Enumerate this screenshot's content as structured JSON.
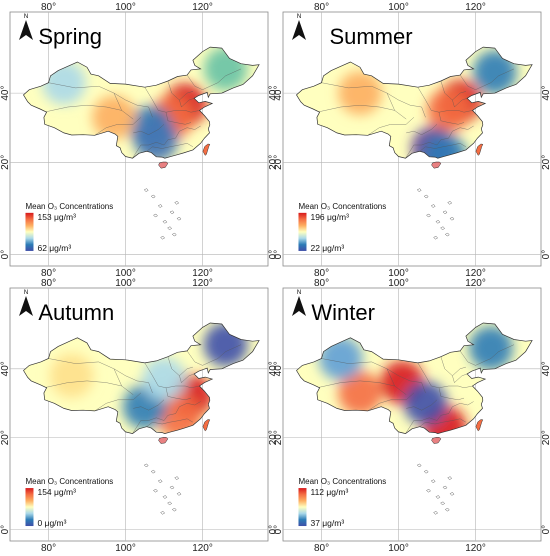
{
  "panels": [
    {
      "season": "Spring",
      "legend_title": "Mean O₃ Concentrations",
      "legend_max": "153 μg/m³",
      "legend_min": "62 μg/m³",
      "hotspots": [
        {
          "lon": 115.5,
          "lat": 36.5,
          "color": "#d7191c"
        },
        {
          "lon": 112,
          "lat": 33,
          "color": "#f46d43"
        },
        {
          "lon": 106.5,
          "lat": 30,
          "color": "#2c7bb6"
        },
        {
          "lon": 108,
          "lat": 26.5,
          "color": "#4575b4"
        },
        {
          "lon": 97,
          "lat": 33,
          "color": "#fdae61"
        },
        {
          "lon": 84,
          "lat": 43,
          "color": "#abd9e9"
        },
        {
          "lon": 126,
          "lat": 47,
          "color": "#66c2a5"
        }
      ]
    },
    {
      "season": "Summer",
      "legend_title": "Mean O₃ Concentrations",
      "legend_max": "196 μg/m³",
      "legend_min": "22 μg/m³",
      "hotspots": [
        {
          "lon": 116,
          "lat": 37.5,
          "color": "#d7191c"
        },
        {
          "lon": 113,
          "lat": 35,
          "color": "#f46d43"
        },
        {
          "lon": 109,
          "lat": 24,
          "color": "#5e3c99"
        },
        {
          "lon": 112,
          "lat": 22,
          "color": "#2c7bb6"
        },
        {
          "lon": 125,
          "lat": 46,
          "color": "#2c7bb6"
        },
        {
          "lon": 90,
          "lat": 40,
          "color": "#fdae61"
        }
      ]
    },
    {
      "season": "Autumn",
      "legend_title": "Mean O₃ Concentrations",
      "legend_max": "154 μg/m³",
      "legend_min": "0 μg/m³",
      "hotspots": [
        {
          "lon": 117,
          "lat": 32,
          "color": "#d7191c"
        },
        {
          "lon": 114,
          "lat": 26,
          "color": "#f46d43"
        },
        {
          "lon": 126,
          "lat": 47,
          "color": "#3f4fa8"
        },
        {
          "lon": 105,
          "lat": 29,
          "color": "#2c7bb6"
        },
        {
          "lon": 110,
          "lat": 37,
          "color": "#abd9e9"
        },
        {
          "lon": 86,
          "lat": 38,
          "color": "#fee08b"
        }
      ]
    },
    {
      "season": "Winter",
      "legend_title": "Mean O₃ Concentrations",
      "legend_max": "112 μg/m³",
      "legend_min": "37 μg/m³",
      "hotspots": [
        {
          "lon": 101,
          "lat": 36,
          "color": "#d7191c"
        },
        {
          "lon": 90,
          "lat": 33,
          "color": "#f46d43"
        },
        {
          "lon": 112,
          "lat": 23,
          "color": "#d7191c"
        },
        {
          "lon": 107,
          "lat": 30,
          "color": "#3f4fa8"
        },
        {
          "lon": 124,
          "lat": 46,
          "color": "#2c7bb6"
        },
        {
          "lon": 85,
          "lat": 43,
          "color": "#5e9ed6"
        }
      ]
    }
  ],
  "axis": {
    "lon_ticks": [
      "80°",
      "100°",
      "120°"
    ],
    "lat_ticks": [
      "40°",
      "20°",
      "0°"
    ]
  },
  "north_label": "N",
  "colors": {
    "ramp": [
      "#3f4fa8",
      "#2c7bb6",
      "#abd9e9",
      "#ffffbf",
      "#fdae61",
      "#f46d43",
      "#d7191c"
    ],
    "base": "#ffffbf"
  }
}
